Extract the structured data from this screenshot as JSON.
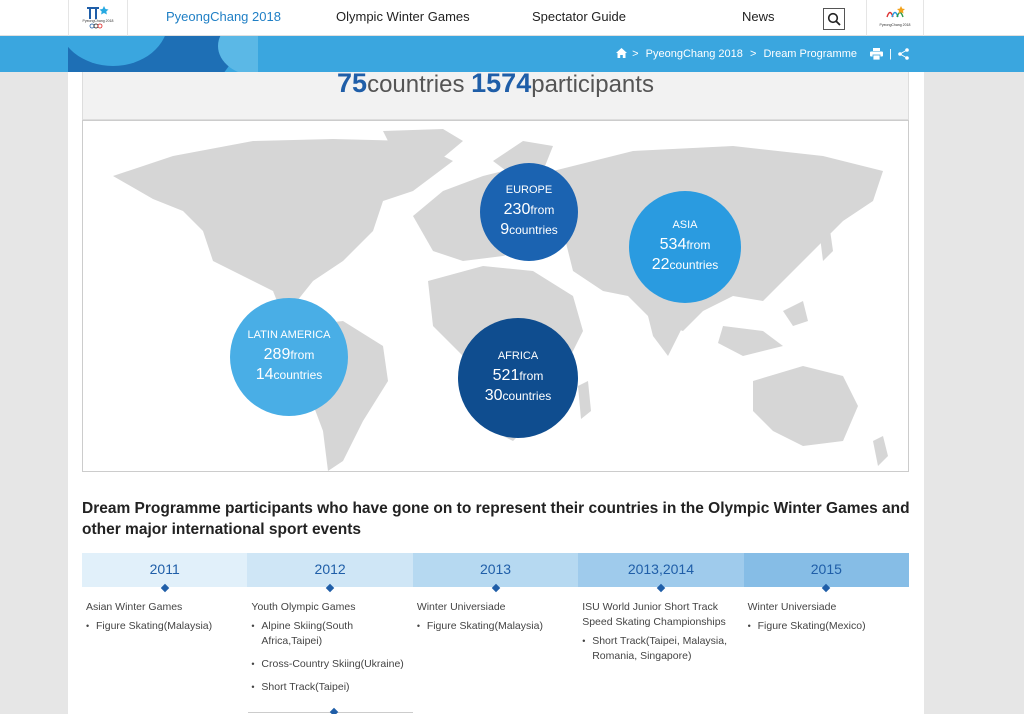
{
  "nav": {
    "items": [
      "PyeongChang 2018",
      "Olympic Winter Games",
      "Spectator Guide",
      "News"
    ],
    "logo_left_caption": "PyeongChang 2018",
    "logo_right_caption": "PyeongChang 2018"
  },
  "breadcrumb": {
    "items": [
      "PyeongChang 2018",
      "Dream Programme"
    ],
    "separator": ">"
  },
  "stats": {
    "countries_num": "75",
    "countries_label": "countries",
    "participants_num": "1574",
    "participants_label": "participants"
  },
  "regions": [
    {
      "name": "EUROPE",
      "participants": "230",
      "from": "from",
      "countries": "9",
      "countries_label": "countries",
      "color": "#1b63b1"
    },
    {
      "name": "ASIA",
      "participants": "534",
      "from": "from",
      "countries": "22",
      "countries_label": "countries",
      "color": "#2a9be0"
    },
    {
      "name": "LATIN AMERICA",
      "participants": "289",
      "from": "from",
      "countries": "14",
      "countries_label": "countries",
      "color": "#49aee6"
    },
    {
      "name": "AFRICA",
      "participants": "521",
      "from": "from",
      "countries": "30",
      "countries_label": "countries",
      "color": "#0f4d8f"
    }
  ],
  "headline": "Dream Programme participants who have gone on to represent their countries in the Olympic Winter Games and other major international sport events",
  "timeline": {
    "years": [
      "2011",
      "2012",
      "2013",
      "2013,2014",
      "2015"
    ],
    "colors": [
      "#e1f0fa",
      "#cfe6f6",
      "#b6d9f1",
      "#9fcbec",
      "#86bde6"
    ]
  },
  "events": [
    {
      "title": "Asian Winter Games",
      "items": [
        "Figure Skating(Malaysia)"
      ]
    },
    {
      "title": "Youth Olympic Games",
      "items": [
        "Alpine Skiing(South Africa,Taipei)",
        "Cross-Country Skiing(Ukraine)",
        "Short Track(Taipei)"
      ]
    },
    {
      "title": "Winter Universiade",
      "items": [
        "Figure Skating(Malaysia)"
      ]
    },
    {
      "title": "ISU World Junior Short Track Speed Skating Championships",
      "items": [
        "Short Track(Taipei, Malaysia, Romania, Singapore)"
      ]
    },
    {
      "title": "Winter Universiade",
      "items": [
        "Figure Skating(Mexico)"
      ]
    }
  ]
}
